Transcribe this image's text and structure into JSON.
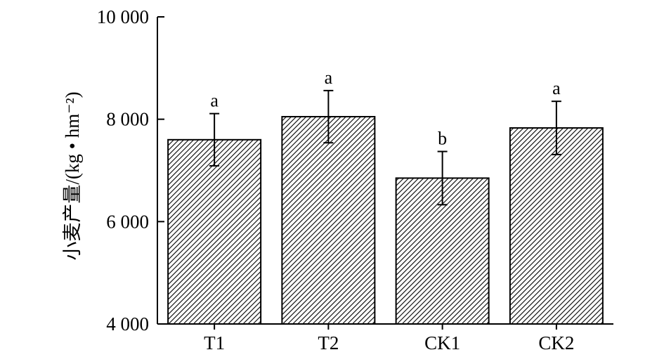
{
  "chart_data": {
    "type": "bar",
    "categories": [
      "T1",
      "T2",
      "CK1",
      "CK2"
    ],
    "values": [
      7600,
      8050,
      6850,
      7830
    ],
    "error": [
      510,
      510,
      520,
      520
    ],
    "significance": [
      "a",
      "a",
      "b",
      "a"
    ],
    "ylabel": "小麦产量/(kg • hm⁻²)",
    "ylim": [
      4000,
      10000
    ],
    "yticks": [
      4000,
      6000,
      8000,
      10000
    ],
    "ytick_labels": [
      "4 000",
      "6 000",
      "8 000",
      "10 000"
    ],
    "legend": "none",
    "grid": false,
    "bar_fill": "diagonal-hatch",
    "colors": {
      "bar_stroke": "#000000",
      "hatch": "#000000",
      "background": "#ffffff"
    }
  }
}
